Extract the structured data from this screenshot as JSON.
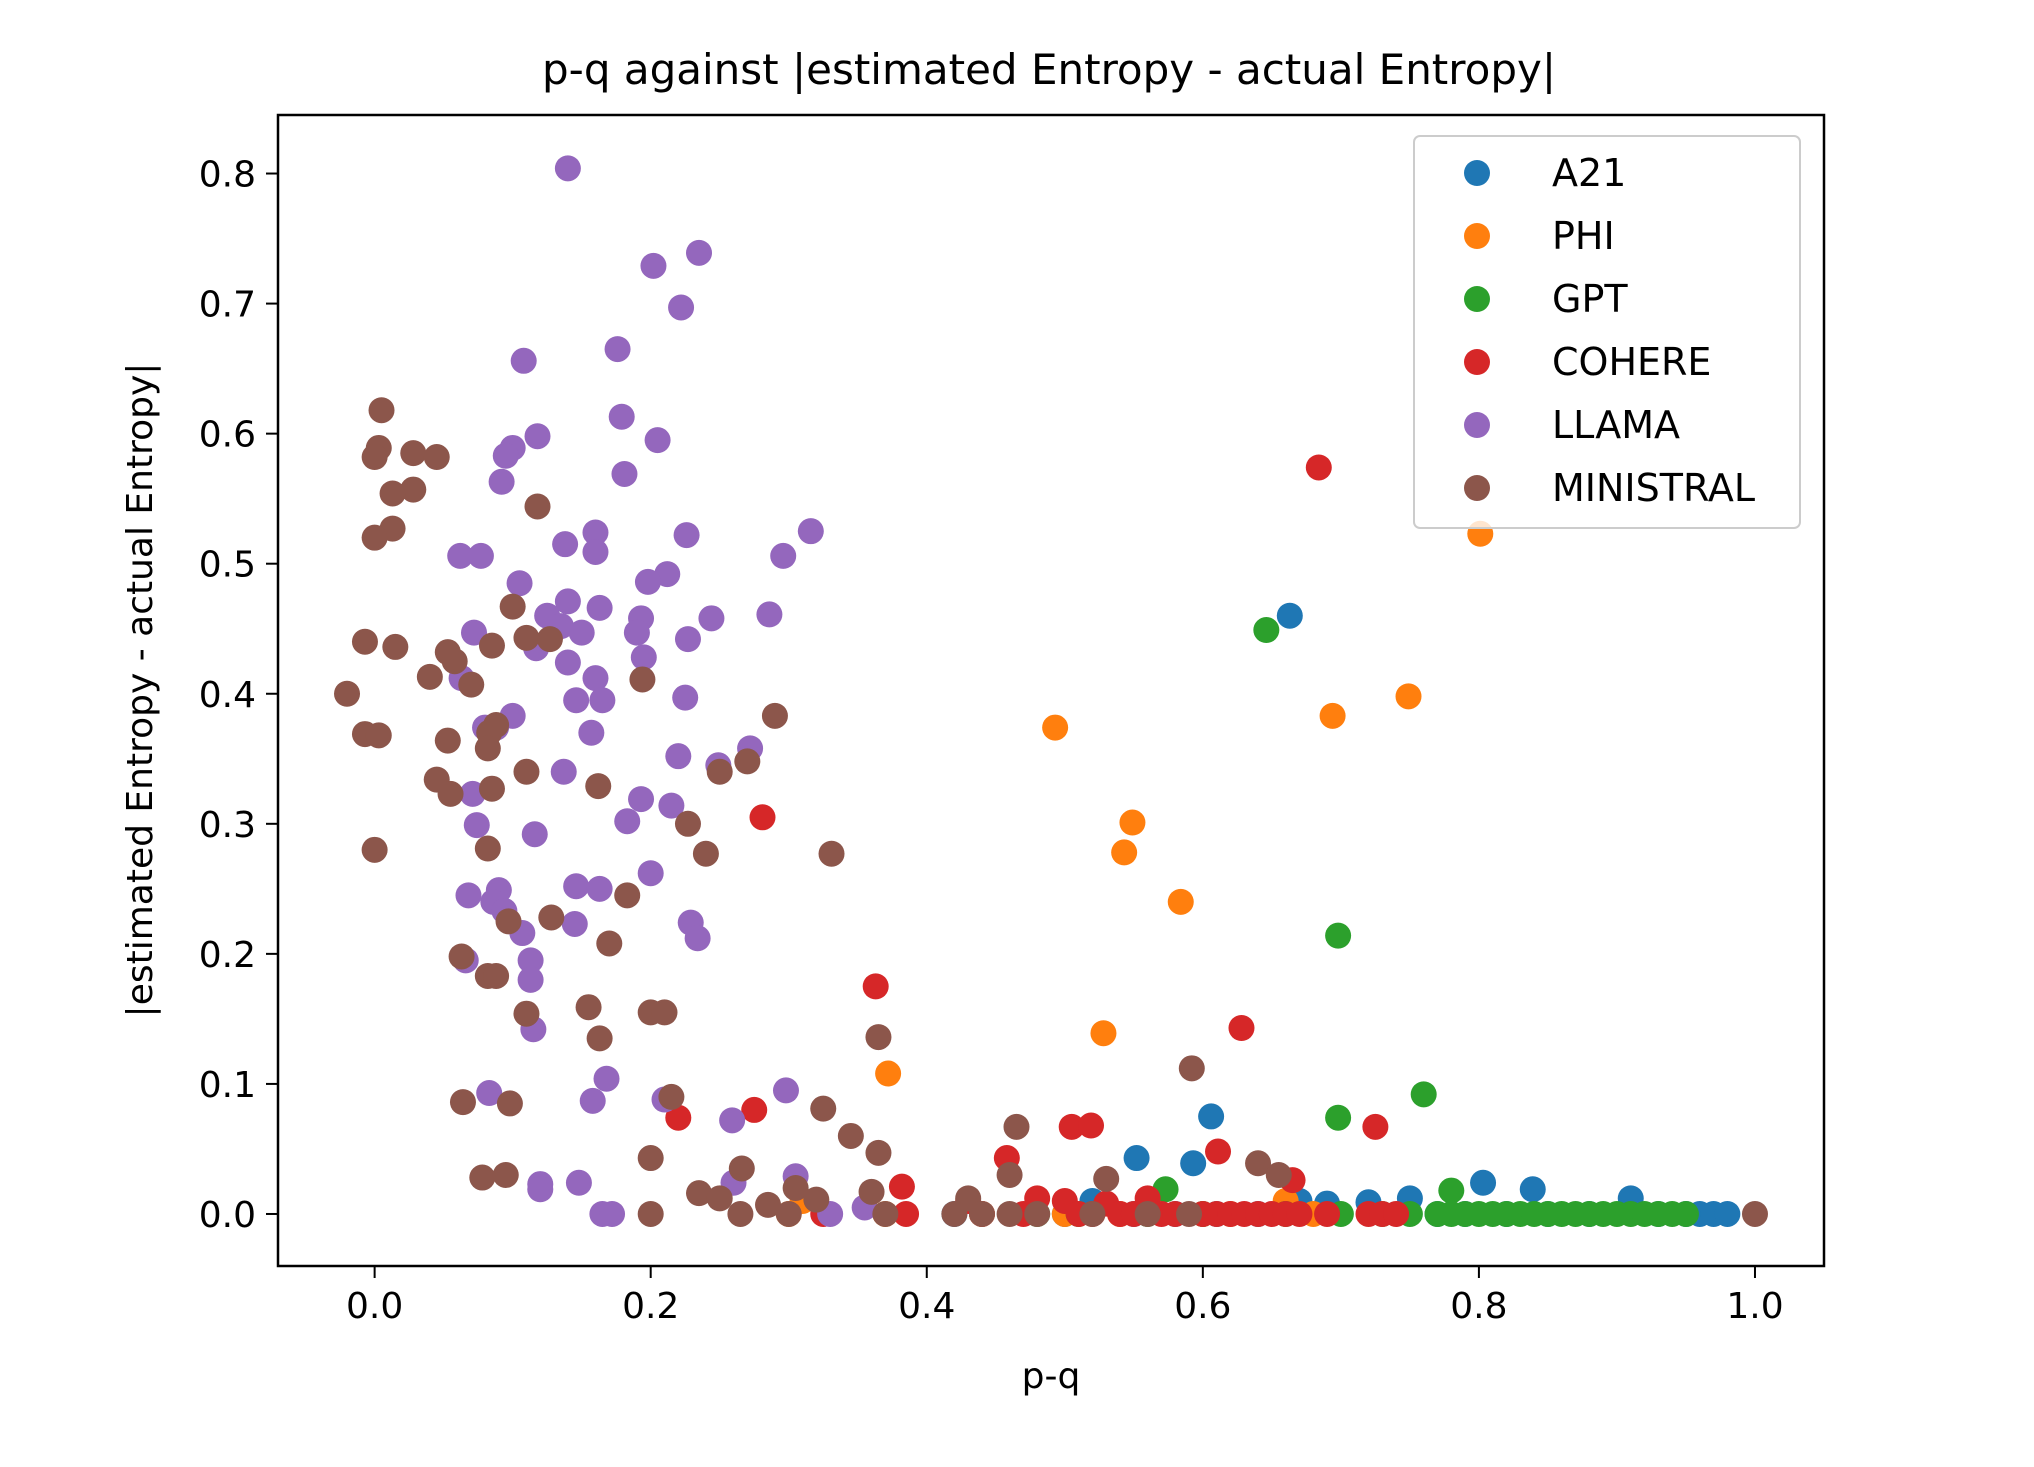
{
  "chart_data": {
    "type": "scatter",
    "title": "p-q against |estimated Entropy - actual Entropy|",
    "xlabel": "p-q",
    "ylabel": "|estimated Entropy - actual Entropy|",
    "xlim": [
      -0.07,
      1.05
    ],
    "ylim": [
      -0.04,
      0.845
    ],
    "xticks": [
      0.0,
      0.2,
      0.4,
      0.6,
      0.8,
      1.0
    ],
    "xtick_labels": [
      "0.0",
      "0.2",
      "0.4",
      "0.6",
      "0.8",
      "1.0"
    ],
    "yticks": [
      0.0,
      0.1,
      0.2,
      0.3,
      0.4,
      0.5,
      0.6,
      0.7,
      0.8
    ],
    "ytick_labels": [
      "0.0",
      "0.1",
      "0.2",
      "0.3",
      "0.4",
      "0.5",
      "0.6",
      "0.7",
      "0.8"
    ],
    "grid": false,
    "legend_position": "top-right",
    "series": [
      {
        "name": "A21",
        "color": "#1f77b4",
        "points": [
          [
            0.663,
            0.46
          ],
          [
            0.606,
            0.075
          ],
          [
            0.552,
            0.043
          ],
          [
            0.593,
            0.039
          ],
          [
            0.803,
            0.024
          ],
          [
            0.839,
            0.019
          ],
          [
            0.42,
            0.0
          ],
          [
            0.5,
            0.0
          ],
          [
            0.52,
            0.01
          ],
          [
            0.55,
            0.0
          ],
          [
            0.58,
            0.0
          ],
          [
            0.61,
            0.0
          ],
          [
            0.64,
            0.0
          ],
          [
            0.67,
            0.01
          ],
          [
            0.69,
            0.008
          ],
          [
            0.72,
            0.009
          ],
          [
            0.75,
            0.012
          ],
          [
            0.77,
            0.0
          ],
          [
            0.79,
            0.0
          ],
          [
            0.82,
            0.0
          ],
          [
            0.85,
            0.0
          ],
          [
            0.88,
            0.0
          ],
          [
            0.91,
            0.012
          ],
          [
            0.93,
            0.0
          ],
          [
            0.95,
            0.0
          ],
          [
            0.96,
            0.0
          ],
          [
            0.97,
            0.0
          ],
          [
            0.98,
            0.0
          ]
        ]
      },
      {
        "name": "PHI",
        "color": "#ff7f0e",
        "points": [
          [
            0.801,
            0.523
          ],
          [
            0.749,
            0.398
          ],
          [
            0.694,
            0.383
          ],
          [
            0.493,
            0.374
          ],
          [
            0.549,
            0.301
          ],
          [
            0.543,
            0.278
          ],
          [
            0.584,
            0.24
          ],
          [
            0.528,
            0.139
          ],
          [
            0.372,
            0.108
          ],
          [
            0.3,
            0.0
          ],
          [
            0.31,
            0.01
          ],
          [
            0.37,
            0.0
          ],
          [
            0.44,
            0.0
          ],
          [
            0.5,
            0.0
          ],
          [
            0.54,
            0.0
          ],
          [
            0.6,
            0.0
          ],
          [
            0.62,
            0.0
          ],
          [
            0.66,
            0.01
          ],
          [
            0.68,
            0.0
          ]
        ]
      },
      {
        "name": "GPT",
        "color": "#2ca02c",
        "points": [
          [
            0.646,
            0.449
          ],
          [
            0.698,
            0.214
          ],
          [
            0.76,
            0.092
          ],
          [
            0.698,
            0.074
          ],
          [
            0.573,
            0.019
          ],
          [
            0.78,
            0.018
          ],
          [
            0.48,
            0.0
          ],
          [
            0.51,
            0.0
          ],
          [
            0.56,
            0.0
          ],
          [
            0.6,
            0.0
          ],
          [
            0.66,
            0.0
          ],
          [
            0.7,
            0.0
          ],
          [
            0.73,
            0.0
          ],
          [
            0.75,
            0.0
          ],
          [
            0.77,
            0.0
          ],
          [
            0.78,
            0.0
          ],
          [
            0.79,
            0.0
          ],
          [
            0.8,
            0.0
          ],
          [
            0.81,
            0.0
          ],
          [
            0.82,
            0.0
          ],
          [
            0.83,
            0.0
          ],
          [
            0.84,
            0.0
          ],
          [
            0.85,
            0.0
          ],
          [
            0.86,
            0.0
          ],
          [
            0.87,
            0.0
          ],
          [
            0.88,
            0.0
          ],
          [
            0.89,
            0.0
          ],
          [
            0.9,
            0.0
          ],
          [
            0.91,
            0.0
          ],
          [
            0.92,
            0.0
          ],
          [
            0.93,
            0.0
          ],
          [
            0.94,
            0.0
          ],
          [
            0.95,
            0.0
          ]
        ]
      },
      {
        "name": "COHERE",
        "color": "#d62728",
        "points": [
          [
            0.684,
            0.574
          ],
          [
            0.281,
            0.305
          ],
          [
            0.363,
            0.175
          ],
          [
            0.628,
            0.143
          ],
          [
            0.275,
            0.08
          ],
          [
            0.22,
            0.074
          ],
          [
            0.505,
            0.067
          ],
          [
            0.519,
            0.068
          ],
          [
            0.725,
            0.067
          ],
          [
            0.611,
            0.048
          ],
          [
            0.458,
            0.043
          ],
          [
            0.665,
            0.026
          ],
          [
            0.382,
            0.021
          ],
          [
            0.325,
            0.0
          ],
          [
            0.43,
            0.01
          ],
          [
            0.44,
            0.0
          ],
          [
            0.47,
            0.0
          ],
          [
            0.48,
            0.012
          ],
          [
            0.5,
            0.01
          ],
          [
            0.51,
            0.0
          ],
          [
            0.52,
            0.0
          ],
          [
            0.53,
            0.008
          ],
          [
            0.54,
            0.0
          ],
          [
            0.55,
            0.0
          ],
          [
            0.56,
            0.012
          ],
          [
            0.57,
            0.0
          ],
          [
            0.58,
            0.0
          ],
          [
            0.6,
            0.0
          ],
          [
            0.61,
            0.0
          ],
          [
            0.62,
            0.0
          ],
          [
            0.63,
            0.0
          ],
          [
            0.64,
            0.0
          ],
          [
            0.65,
            0.0
          ],
          [
            0.66,
            0.0
          ],
          [
            0.67,
            0.0
          ],
          [
            0.69,
            0.0
          ],
          [
            0.72,
            0.0
          ],
          [
            0.73,
            0.0
          ],
          [
            0.74,
            0.0
          ],
          [
            0.385,
            0.0
          ]
        ]
      },
      {
        "name": "LLAMA",
        "color": "#9467bd",
        "points": [
          [
            0.14,
            0.804
          ],
          [
            0.235,
            0.739
          ],
          [
            0.202,
            0.729
          ],
          [
            0.222,
            0.697
          ],
          [
            0.176,
            0.665
          ],
          [
            0.108,
            0.656
          ],
          [
            0.179,
            0.613
          ],
          [
            0.118,
            0.598
          ],
          [
            0.205,
            0.595
          ],
          [
            0.1,
            0.589
          ],
          [
            0.095,
            0.583
          ],
          [
            0.181,
            0.569
          ],
          [
            0.092,
            0.563
          ],
          [
            0.316,
            0.525
          ],
          [
            0.16,
            0.524
          ],
          [
            0.226,
            0.522
          ],
          [
            0.138,
            0.515
          ],
          [
            0.296,
            0.506
          ],
          [
            0.062,
            0.506
          ],
          [
            0.077,
            0.506
          ],
          [
            0.16,
            0.509
          ],
          [
            0.212,
            0.492
          ],
          [
            0.198,
            0.486
          ],
          [
            0.105,
            0.485
          ],
          [
            0.14,
            0.471
          ],
          [
            0.163,
            0.466
          ],
          [
            0.286,
            0.461
          ],
          [
            0.125,
            0.46
          ],
          [
            0.193,
            0.458
          ],
          [
            0.244,
            0.458
          ],
          [
            0.135,
            0.452
          ],
          [
            0.15,
            0.447
          ],
          [
            0.072,
            0.447
          ],
          [
            0.19,
            0.447
          ],
          [
            0.227,
            0.442
          ],
          [
            0.117,
            0.435
          ],
          [
            0.195,
            0.428
          ],
          [
            0.14,
            0.424
          ],
          [
            0.16,
            0.412
          ],
          [
            0.063,
            0.412
          ],
          [
            0.165,
            0.395
          ],
          [
            0.146,
            0.395
          ],
          [
            0.225,
            0.397
          ],
          [
            0.088,
            0.374
          ],
          [
            0.157,
            0.37
          ],
          [
            0.08,
            0.374
          ],
          [
            0.272,
            0.358
          ],
          [
            0.1,
            0.383
          ],
          [
            0.22,
            0.352
          ],
          [
            0.249,
            0.345
          ],
          [
            0.137,
            0.34
          ],
          [
            0.215,
            0.314
          ],
          [
            0.193,
            0.319
          ],
          [
            0.071,
            0.323
          ],
          [
            0.183,
            0.302
          ],
          [
            0.074,
            0.299
          ],
          [
            0.116,
            0.292
          ],
          [
            0.2,
            0.262
          ],
          [
            0.146,
            0.252
          ],
          [
            0.163,
            0.25
          ],
          [
            0.09,
            0.249
          ],
          [
            0.068,
            0.245
          ],
          [
            0.086,
            0.24
          ],
          [
            0.094,
            0.233
          ],
          [
            0.145,
            0.223
          ],
          [
            0.229,
            0.224
          ],
          [
            0.234,
            0.212
          ],
          [
            0.107,
            0.216
          ],
          [
            0.113,
            0.195
          ],
          [
            0.066,
            0.195
          ],
          [
            0.113,
            0.18
          ],
          [
            0.115,
            0.142
          ],
          [
            0.168,
            0.104
          ],
          [
            0.298,
            0.095
          ],
          [
            0.083,
            0.093
          ],
          [
            0.21,
            0.088
          ],
          [
            0.158,
            0.087
          ],
          [
            0.259,
            0.072
          ],
          [
            0.305,
            0.029
          ],
          [
            0.26,
            0.024
          ],
          [
            0.12,
            0.023
          ],
          [
            0.148,
            0.024
          ],
          [
            0.12,
            0.019
          ],
          [
            0.165,
            0.0
          ],
          [
            0.172,
            0.0
          ],
          [
            0.33,
            0.0
          ],
          [
            0.355,
            0.005
          ]
        ]
      },
      {
        "name": "MINISTRAL",
        "color": "#8c564b",
        "points": [
          [
            0.005,
            0.618
          ],
          [
            0.028,
            0.585
          ],
          [
            0.003,
            0.589
          ],
          [
            0.045,
            0.582
          ],
          [
            0.0,
            0.582
          ],
          [
            0.028,
            0.557
          ],
          [
            0.013,
            0.554
          ],
          [
            0.118,
            0.544
          ],
          [
            0.013,
            0.527
          ],
          [
            0.0,
            0.52
          ],
          [
            0.1,
            0.467
          ],
          [
            0.11,
            0.443
          ],
          [
            0.127,
            0.442
          ],
          [
            -0.007,
            0.44
          ],
          [
            0.015,
            0.436
          ],
          [
            0.085,
            0.437
          ],
          [
            0.053,
            0.432
          ],
          [
            0.058,
            0.425
          ],
          [
            0.04,
            0.413
          ],
          [
            0.07,
            0.407
          ],
          [
            0.194,
            0.411
          ],
          [
            -0.02,
            0.4
          ],
          [
            0.088,
            0.376
          ],
          [
            0.29,
            0.383
          ],
          [
            0.083,
            0.37
          ],
          [
            -0.007,
            0.369
          ],
          [
            0.003,
            0.368
          ],
          [
            0.053,
            0.364
          ],
          [
            0.082,
            0.358
          ],
          [
            0.27,
            0.348
          ],
          [
            0.25,
            0.34
          ],
          [
            0.11,
            0.34
          ],
          [
            0.045,
            0.334
          ],
          [
            0.055,
            0.323
          ],
          [
            0.085,
            0.327
          ],
          [
            0.162,
            0.329
          ],
          [
            0.227,
            0.3
          ],
          [
            0.082,
            0.281
          ],
          [
            0.0,
            0.28
          ],
          [
            0.24,
            0.277
          ],
          [
            0.331,
            0.277
          ],
          [
            0.183,
            0.245
          ],
          [
            0.128,
            0.228
          ],
          [
            0.097,
            0.225
          ],
          [
            0.17,
            0.208
          ],
          [
            0.063,
            0.198
          ],
          [
            0.082,
            0.183
          ],
          [
            0.088,
            0.183
          ],
          [
            0.155,
            0.159
          ],
          [
            0.2,
            0.155
          ],
          [
            0.21,
            0.155
          ],
          [
            0.11,
            0.154
          ],
          [
            0.163,
            0.135
          ],
          [
            0.365,
            0.136
          ],
          [
            0.592,
            0.112
          ],
          [
            0.215,
            0.09
          ],
          [
            0.064,
            0.086
          ],
          [
            0.098,
            0.085
          ],
          [
            0.325,
            0.081
          ],
          [
            0.465,
            0.067
          ],
          [
            0.345,
            0.06
          ],
          [
            0.365,
            0.047
          ],
          [
            0.2,
            0.043
          ],
          [
            0.64,
            0.039
          ],
          [
            0.266,
            0.035
          ],
          [
            0.46,
            0.03
          ],
          [
            0.655,
            0.03
          ],
          [
            0.095,
            0.03
          ],
          [
            0.078,
            0.028
          ],
          [
            0.53,
            0.027
          ],
          [
            0.305,
            0.02
          ],
          [
            0.36,
            0.017
          ],
          [
            0.235,
            0.016
          ],
          [
            0.25,
            0.012
          ],
          [
            0.32,
            0.011
          ],
          [
            0.285,
            0.007
          ],
          [
            0.43,
            0.012
          ],
          [
            0.2,
            0.0
          ],
          [
            0.265,
            0.0
          ],
          [
            0.3,
            0.0
          ],
          [
            0.37,
            0.0
          ],
          [
            0.42,
            0.0
          ],
          [
            0.44,
            0.0
          ],
          [
            0.46,
            0.0
          ],
          [
            0.48,
            0.0
          ],
          [
            0.52,
            0.0
          ],
          [
            0.56,
            0.0
          ],
          [
            0.59,
            0.0
          ],
          [
            1.0,
            0.0
          ]
        ]
      }
    ]
  }
}
